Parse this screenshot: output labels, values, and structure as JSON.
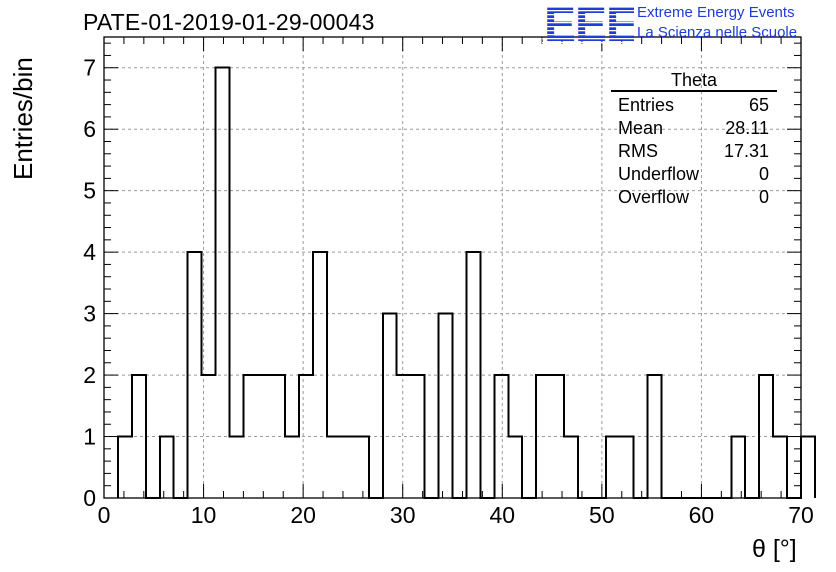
{
  "title": "PATE-01-2019-01-29-00043",
  "logo": {
    "mark": "EEE",
    "line1": "Extreme Energy Events",
    "line2": "La Scienza nelle Scuole",
    "color": "#1f3cd6"
  },
  "stats_box": {
    "title": "Theta",
    "rows": [
      {
        "label": "Entries",
        "value": "65"
      },
      {
        "label": "Mean",
        "value": "28.11"
      },
      {
        "label": "RMS",
        "value": "17.31"
      },
      {
        "label": "Underflow",
        "value": "0"
      },
      {
        "label": "Overflow",
        "value": "0"
      }
    ]
  },
  "chart_data": {
    "type": "bar",
    "histogram": true,
    "xlabel": "θ [°]",
    "ylabel": "Entries/bin",
    "xlim": [
      0,
      70
    ],
    "ylim": [
      0,
      7.5
    ],
    "bin_width": 1.4,
    "bin_start": 1.4,
    "values": [
      1,
      2,
      0,
      1,
      0,
      4,
      2,
      7,
      1,
      2,
      2,
      2,
      1,
      2,
      4,
      1,
      1,
      1,
      0,
      3,
      2,
      2,
      0,
      3,
      0,
      4,
      0,
      2,
      1,
      0,
      2,
      2,
      1,
      0,
      0,
      1,
      1,
      0,
      2,
      0,
      0,
      0,
      0,
      0,
      1,
      0,
      2,
      1,
      0,
      1
    ],
    "xticks": [
      0,
      10,
      20,
      30,
      40,
      50,
      60,
      70
    ],
    "yticks": [
      0,
      1,
      2,
      3,
      4,
      5,
      6,
      7
    ],
    "grid": true,
    "line_color": "#000000"
  }
}
